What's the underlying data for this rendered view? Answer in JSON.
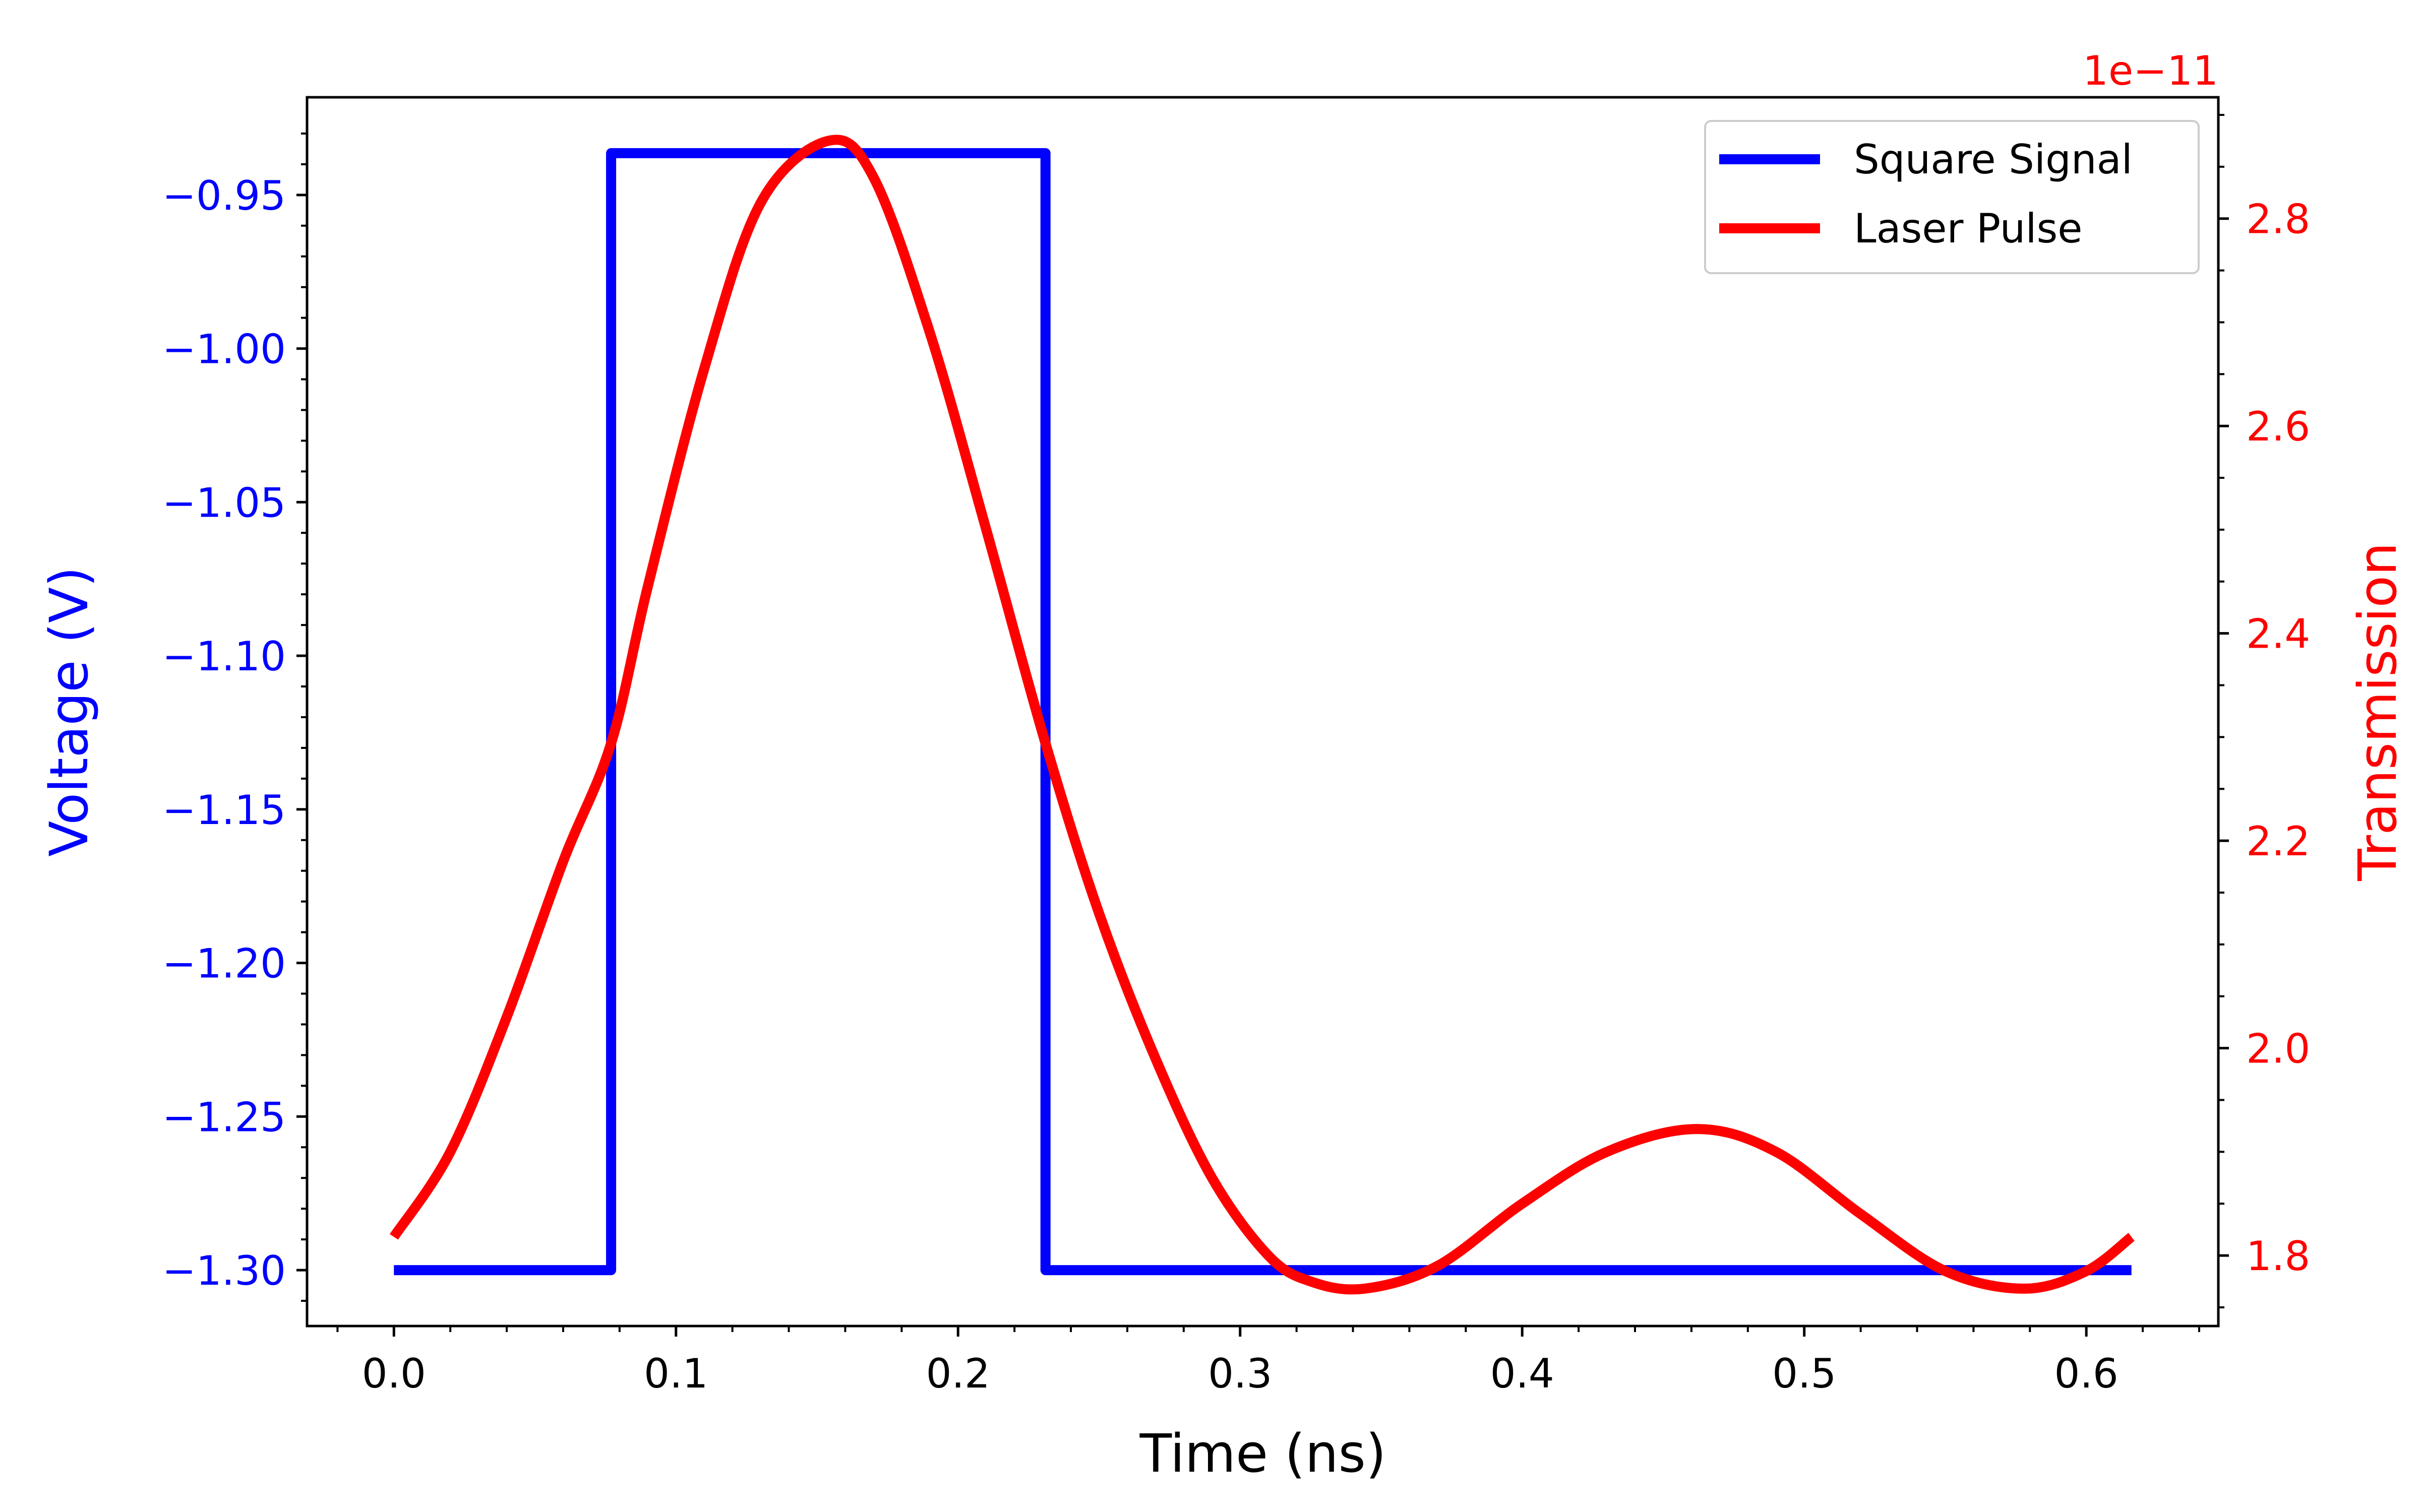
{
  "chart_data": {
    "type": "line",
    "title": "",
    "xlabel": "Time (ns)",
    "ylabel_left": "Voltage (V)",
    "ylabel_right": "Transmission",
    "right_axis_offset_text": "1e−11",
    "xlim": [
      -0.0308,
      0.6468
    ],
    "ylim_left": [
      -1.3182,
      -0.9182
    ],
    "ylim_right": [
      1.732,
      2.917
    ],
    "x_ticks": [
      {
        "value": 0.0,
        "label": "0.0"
      },
      {
        "value": 0.1,
        "label": "0.1"
      },
      {
        "value": 0.2,
        "label": "0.2"
      },
      {
        "value": 0.3,
        "label": "0.3"
      },
      {
        "value": 0.4,
        "label": "0.4"
      },
      {
        "value": 0.5,
        "label": "0.5"
      },
      {
        "value": 0.6,
        "label": "0.6"
      }
    ],
    "y_left_ticks": [
      {
        "value": -0.95,
        "label": "−0.95"
      },
      {
        "value": -1.0,
        "label": "−1.00"
      },
      {
        "value": -1.05,
        "label": "−1.05"
      },
      {
        "value": -1.1,
        "label": "−1.10"
      },
      {
        "value": -1.15,
        "label": "−1.15"
      },
      {
        "value": -1.2,
        "label": "−1.20"
      },
      {
        "value": -1.25,
        "label": "−1.25"
      },
      {
        "value": -1.3,
        "label": "−1.30"
      }
    ],
    "y_right_ticks": [
      {
        "value": 1.8,
        "label": "1.8"
      },
      {
        "value": 2.0,
        "label": "2.0"
      },
      {
        "value": 2.2,
        "label": "2.2"
      },
      {
        "value": 2.4,
        "label": "2.4"
      },
      {
        "value": 2.6,
        "label": "2.6"
      },
      {
        "value": 2.8,
        "label": "2.8"
      }
    ],
    "legend_position": "top-right",
    "grid": false,
    "series": [
      {
        "name": "Square Signal",
        "axis": "left",
        "color": "#0000ff",
        "x": [
          0.0,
          0.077,
          0.077,
          0.231,
          0.231,
          0.616
        ],
        "y": [
          -1.3,
          -1.3,
          -0.9364,
          -0.9364,
          -1.3,
          -1.3
        ]
      },
      {
        "name": "Laser Pulse",
        "axis": "right",
        "color": "#ff0000",
        "x": [
          0.0,
          0.02,
          0.04,
          0.06,
          0.077,
          0.09,
          0.11,
          0.13,
          0.154,
          0.17,
          0.19,
          0.21,
          0.231,
          0.25,
          0.27,
          0.29,
          0.31,
          0.325,
          0.344,
          0.37,
          0.4,
          0.43,
          0.462,
          0.49,
          0.52,
          0.55,
          0.578,
          0.6,
          0.616
        ],
        "y": [
          1.818,
          1.9,
          2.03,
          2.18,
          2.294,
          2.445,
          2.655,
          2.815,
          2.875,
          2.84,
          2.69,
          2.5,
          2.294,
          2.13,
          1.99,
          1.875,
          1.8,
          1.775,
          1.768,
          1.79,
          1.85,
          1.9,
          1.922,
          1.9,
          1.84,
          1.785,
          1.768,
          1.785,
          1.818
        ]
      }
    ]
  }
}
